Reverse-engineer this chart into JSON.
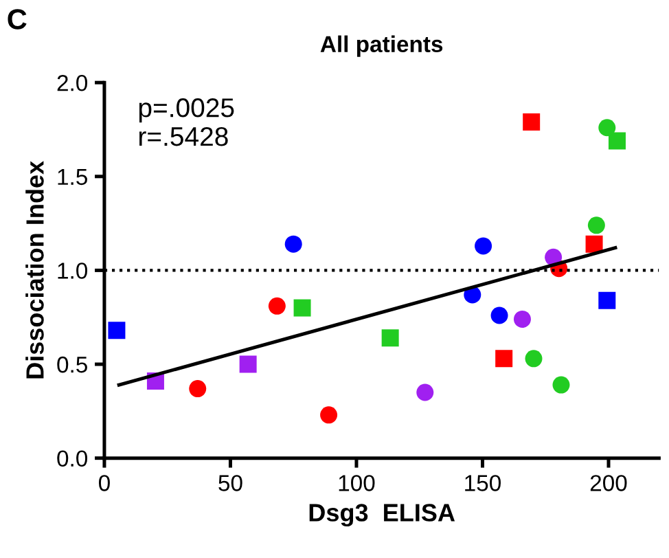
{
  "chart_data": {
    "type": "scatter",
    "title": "All patients",
    "xlabel": "Dsg3  ELISA",
    "ylabel": "Dissociation Index",
    "annotations": [
      "C",
      "p=.0025\nr=.5428"
    ],
    "xlim": [
      0,
      220
    ],
    "xticks": [
      0,
      50,
      100,
      150,
      200
    ],
    "ylim": [
      0,
      2.0
    ],
    "yticks": [
      {
        "value": 0,
        "label": "0.0"
      },
      {
        "value": 0.5,
        "label": "0.5"
      },
      {
        "value": 1.0,
        "label": "1.0"
      },
      {
        "value": 1.5,
        "label": "1.5"
      },
      {
        "value": 2.0,
        "label": "2.0"
      }
    ],
    "grid": false,
    "legend": false,
    "ref_lines": [
      {
        "axis": "y",
        "value": 1.0,
        "line_style": "dotted",
        "color": "#000000"
      }
    ],
    "series": [
      {
        "color": "#0000ff",
        "marker": "square",
        "x": [
          4.9,
          199.4
        ],
        "values": [
          0.68,
          0.84
        ]
      },
      {
        "color": "#a020f0",
        "marker": "square",
        "x": [
          20.3,
          57
        ],
        "values": [
          0.41,
          0.5
        ]
      },
      {
        "color": "#ff0000",
        "marker": "square",
        "x": [
          158.5,
          169.4,
          194.3
        ],
        "values": [
          0.53,
          1.79,
          1.14
        ]
      },
      {
        "color": "#22cc22",
        "marker": "square",
        "x": [
          78.5,
          113.4,
          203.4
        ],
        "values": [
          0.8,
          0.64,
          1.69
        ]
      },
      {
        "color": "#ff0000",
        "marker": "circle",
        "x": [
          37,
          68.5,
          89,
          180.3
        ],
        "values": [
          0.37,
          0.81,
          0.23,
          1.01
        ]
      },
      {
        "color": "#0000ff",
        "marker": "circle",
        "x": [
          75,
          150.3,
          146,
          156.7
        ],
        "values": [
          1.14,
          1.13,
          0.87,
          0.76
        ]
      },
      {
        "color": "#a020f0",
        "marker": "circle",
        "x": [
          127.2,
          165.8,
          178.1
        ],
        "values": [
          0.35,
          0.74,
          1.07
        ]
      },
      {
        "color": "#22cc22",
        "marker": "circle",
        "x": [
          170.3,
          181.2,
          199.4,
          195.2
        ],
        "values": [
          0.53,
          0.39,
          1.76,
          1.24
        ]
      },
      {
        "type": "line",
        "color": "#000000",
        "marker": "none",
        "x": [
          5.8,
          202.7
        ],
        "values": [
          0.39,
          1.12
        ]
      }
    ]
  }
}
